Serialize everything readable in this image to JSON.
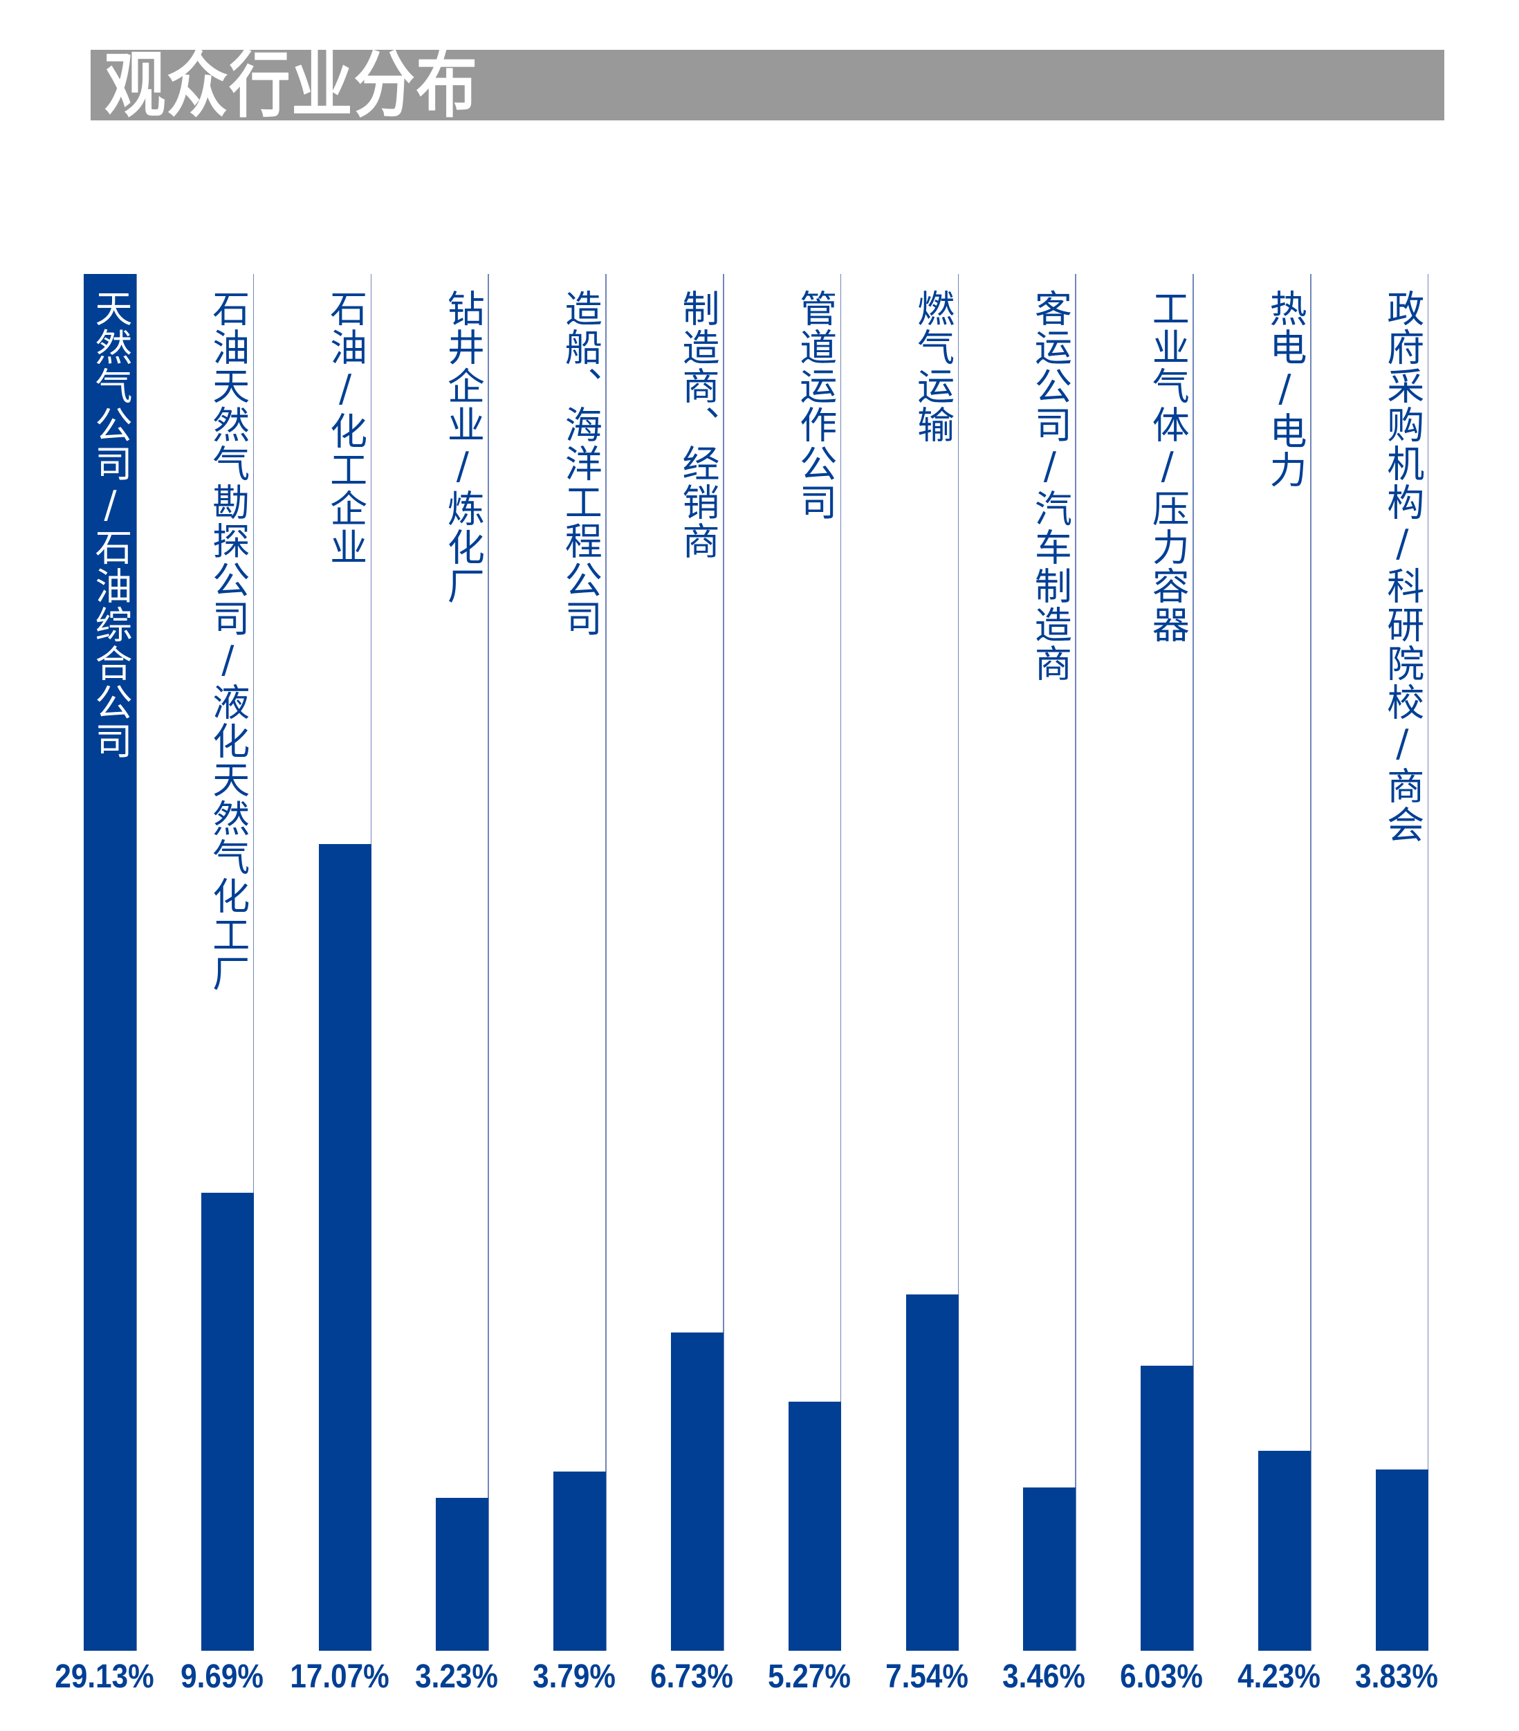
{
  "title": "观众行业分布",
  "colors": {
    "bar": "#003f94",
    "title_bg": "#999999",
    "title_text": "#ffffff",
    "first_label": "#ffffff"
  },
  "chart_data": {
    "type": "bar",
    "title": "观众行业分布",
    "categories": [
      "天然气公司/石油综合公司",
      "石油天然气勘探公司/液化天然气化工厂",
      "石油/化工企业",
      "钻井企业/炼化厂",
      "造船、海洋工程公司",
      "制造商、经销商",
      "管道运作公司",
      "燃气运输",
      "客运公司/汽车制造商",
      "工业气体/压力容器",
      "热电/电力",
      "政府采购机构/科研院校/商会"
    ],
    "values": [
      29.13,
      9.69,
      17.07,
      3.23,
      3.79,
      6.73,
      5.27,
      7.54,
      3.46,
      6.03,
      4.23,
      3.83
    ],
    "value_labels": [
      "29.13%",
      "9.69%",
      "17.07%",
      "3.23%",
      "3.79%",
      "6.73%",
      "5.27%",
      "7.54%",
      "3.46%",
      "6.03%",
      "4.23%",
      "3.83%"
    ],
    "ylim": [
      0,
      29.13
    ],
    "unit": "%",
    "grid": false,
    "legend": "none"
  }
}
